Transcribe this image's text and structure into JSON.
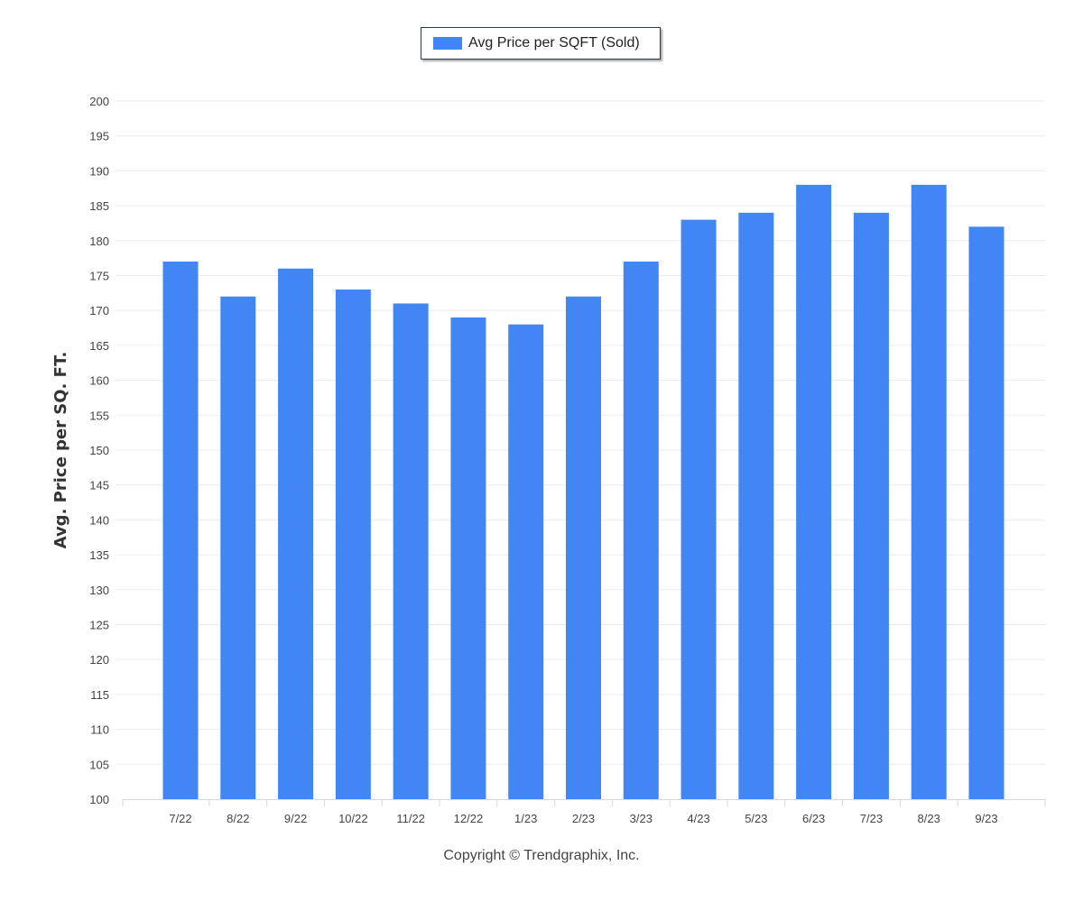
{
  "legend": {
    "label": "Avg Price per SQFT (Sold)",
    "color": "#4285f4"
  },
  "footer": {
    "copyright": "Copyright © Trendgraphix, Inc."
  },
  "chart_data": {
    "type": "bar",
    "categories": [
      "7/22",
      "8/22",
      "9/22",
      "10/22",
      "11/22",
      "12/22",
      "1/23",
      "2/23",
      "3/23",
      "4/23",
      "5/23",
      "6/23",
      "7/23",
      "8/23",
      "9/23"
    ],
    "series": [
      {
        "name": "Avg Price per SQFT (Sold)",
        "values": [
          177,
          172,
          176,
          173,
          171,
          169,
          168,
          172,
          177,
          183,
          184,
          188,
          184,
          188,
          182
        ]
      }
    ],
    "ylabel": "Avg. Price per SQ. FT.",
    "xlabel": "",
    "ylim": [
      100,
      200
    ],
    "ytick_step": 5,
    "grid": true,
    "legend_position": "top-center",
    "bar_color": "#4285f4"
  }
}
